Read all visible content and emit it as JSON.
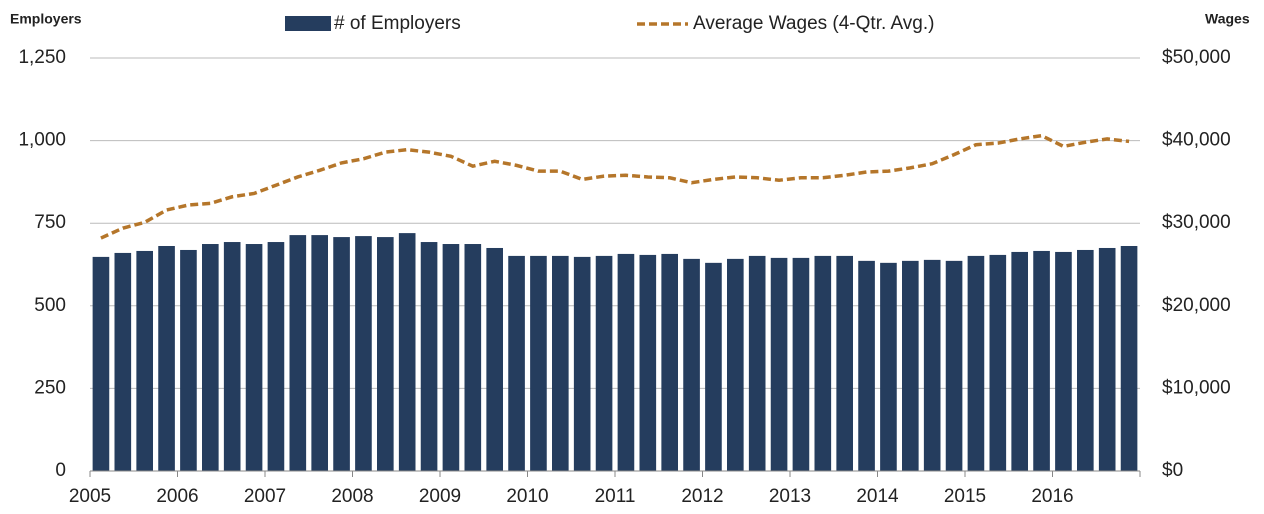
{
  "chart_data": {
    "type": "bar_line",
    "y_label": "Employers",
    "y2_label": "Wages",
    "categories": [
      "2005",
      null,
      null,
      null,
      "2006",
      null,
      null,
      null,
      "2007",
      null,
      null,
      null,
      "2008",
      null,
      null,
      null,
      "2009",
      null,
      null,
      null,
      "2010",
      null,
      null,
      null,
      "2011",
      null,
      null,
      null,
      "2012",
      null,
      null,
      null,
      "2013",
      null,
      null,
      null,
      "2014",
      null,
      null,
      null,
      "2015",
      null,
      null,
      null,
      "2016",
      null,
      null,
      null
    ],
    "series": [
      {
        "name": "# of Employers",
        "type": "bar",
        "color": "#253d5e",
        "values": [
          648,
          660,
          666,
          681,
          669,
          687,
          693,
          687,
          693,
          714,
          714,
          708,
          711,
          708,
          720,
          693,
          687,
          687,
          675,
          651,
          651,
          651,
          648,
          651,
          657,
          654,
          657,
          642,
          630,
          642,
          651,
          645,
          645,
          651,
          651,
          636,
          630,
          636,
          639,
          636,
          651,
          654,
          663,
          666,
          663,
          669,
          675,
          681
        ]
      },
      {
        "name": "Average Wages (4-Qtr. Avg.)",
        "type": "line",
        "dashed": true,
        "axis": "y2",
        "color": "#b5762a",
        "values": [
          28200,
          29400,
          30100,
          31600,
          32200,
          32400,
          33200,
          33600,
          34600,
          35600,
          36400,
          37300,
          37800,
          38600,
          38900,
          38600,
          38100,
          36900,
          37500,
          37000,
          36300,
          36300,
          35300,
          35700,
          35800,
          35600,
          35500,
          34900,
          35300,
          35600,
          35500,
          35200,
          35500,
          35500,
          35800,
          36200,
          36300,
          36700,
          37200,
          38300,
          39500,
          39700,
          40200,
          40600,
          39300,
          39800,
          40200,
          39900
        ]
      }
    ],
    "ylim": [
      0,
      1250
    ],
    "yticks": [
      0,
      250,
      500,
      750,
      {
        "value": 1000,
        "label": "1,000"
      },
      {
        "value": 1250,
        "label": "1,250"
      }
    ],
    "y2lim": [
      0,
      50000
    ],
    "y2ticks": [
      {
        "value": 0,
        "label": "$0"
      },
      {
        "value": 10000,
        "label": "$10,000"
      },
      {
        "value": 20000,
        "label": "$20,000"
      },
      {
        "value": 30000,
        "label": "$30,000"
      },
      {
        "value": 40000,
        "label": "$40,000"
      },
      {
        "value": 50000,
        "label": "$50,000"
      }
    ],
    "y2_tick_color": "#c0842e",
    "grid": true
  }
}
